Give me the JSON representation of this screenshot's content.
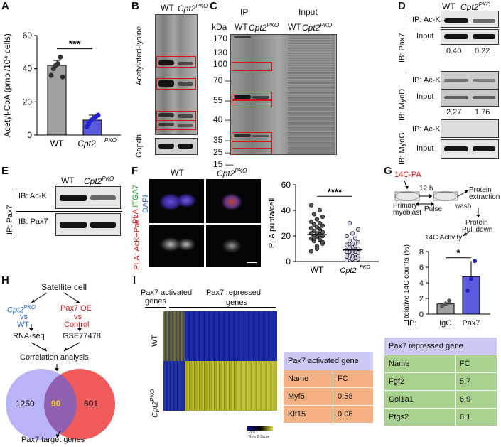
{
  "panels": {
    "A": "A",
    "B": "B",
    "C": "C",
    "D": "D",
    "E": "E",
    "F": "F",
    "G": "G",
    "H": "H",
    "I": "I"
  },
  "panelA": {
    "ylabel": "Acetyl-CoA (pmol/10⁴ cells)",
    "ticks": [
      "0",
      "20",
      "40",
      "60"
    ],
    "categories": [
      "WT",
      "Cpt2PKO"
    ],
    "significance": "***"
  },
  "panelB": {
    "wt": "WT",
    "ko": "Cpt2PKO",
    "acetyl": "Acetylated-lysine",
    "gapdh": "Gapdh"
  },
  "panelC": {
    "kda": "kDa",
    "ip": "IP",
    "input": "Input",
    "wt": "WT",
    "ko": "Cpt2PKO",
    "markers": [
      "170",
      "130",
      "100",
      "70",
      "55",
      "40",
      "35",
      "25",
      "15"
    ]
  },
  "panelD": {
    "wt": "WT",
    "ko": "Cpt2PKO",
    "ipack": "IP: Ac-K",
    "input": "Input",
    "ib1": "IB: Pax7",
    "ib2": "IB: MyoD",
    "ib3": "IB: MyoG",
    "q1a": "0.40",
    "q1b": "0.22",
    "q2a": "2.27",
    "q2b": "1.76"
  },
  "panelE": {
    "wt": "WT",
    "ko": "Cpt2PKO",
    "ip": "IP: Pax7",
    "ib1": "IB: Ac-K",
    "ib2": "IB: Pax7"
  },
  "panelF": {
    "wt": "WT",
    "ko": "Cpt2PKO",
    "pla": "PLA",
    "itga7": "ITGA7",
    "dapi": "DAPI",
    "pla2": "PLA: AcK+Pax7",
    "ylabel": "PLA punta/cell",
    "ticks": [
      "0",
      "20",
      "40",
      "60"
    ],
    "significance": "****"
  },
  "panelG": {
    "c14": "14C-PA",
    "h12": "12 h",
    "primary": "Primary",
    "myoblast": "myoblast",
    "pulse": "Pulse",
    "wash": "wash",
    "protein": "Protein",
    "extraction": "extraction",
    "protein2": "Protein",
    "pulldown": "Pull down",
    "activity": "14C Activity",
    "ylabel": "Relative 14C counts (%)",
    "ticks": [
      "0",
      "2",
      "4",
      "6",
      "8"
    ],
    "ip": "IP:",
    "igg": "IgG",
    "pax7": "Pax7",
    "significance": "*"
  },
  "panelH": {
    "satellite": "Satellite cell",
    "cpt2": "Cpt2PKO",
    "vs": "vs",
    "wt": "WT",
    "pax7oe": "Pax7 OE",
    "control": "Control",
    "rnaseq": "RNA-seq",
    "gse": "GSE77478",
    "corr": "Correlation analysis",
    "left": "1250",
    "overlap": "90",
    "right": "601",
    "target": "Pax7 target genes"
  },
  "panelI": {
    "activated": "Pax7 activated",
    "genes1": "genes",
    "repressed": "Pax7 repressed",
    "genes2": "genes",
    "wt": "WT",
    "ko": "Cpt2PKO",
    "scale": "-1  0  1",
    "zscore": "Row Z-Score",
    "act_title": "Pax7 activated gene",
    "rep_title": "Pax7 repressed gene",
    "name": "Name",
    "fc": "FC",
    "act_rows": [
      [
        "Myf5",
        "0.58"
      ],
      [
        "Klf15",
        "0.06"
      ]
    ],
    "rep_rows": [
      [
        "Fgf2",
        "5.7"
      ],
      [
        "Col1a1",
        "6.9"
      ],
      [
        "Ptgs2",
        "6.1"
      ]
    ]
  },
  "colors": {
    "red": "#d01818",
    "blue": "#2a64c8",
    "purple": "#5b5be0",
    "venn_left": "#b9b4f7",
    "venn_right": "#f05a5a",
    "table_act_head": "#c9c9f2",
    "table_act": "#f4b183",
    "table_rep": "#a9d18e"
  },
  "chart_data": [
    {
      "type": "bar",
      "panel": "A",
      "categories": [
        "WT",
        "Cpt2PKO"
      ],
      "values": [
        42,
        9
      ],
      "points": [
        [
          36,
          40,
          42,
          43,
          47,
          35
        ],
        [
          5,
          7,
          9,
          10,
          11,
          12
        ]
      ],
      "ylabel": "Acetyl-CoA (pmol/10⁴ cells)",
      "ylim": [
        0,
        60
      ]
    },
    {
      "type": "scatter",
      "panel": "F",
      "categories": [
        "WT",
        "Cpt2PKO"
      ],
      "means": [
        21,
        9
      ],
      "ylabel": "PLA punta/cell",
      "ylim": [
        0,
        60
      ]
    },
    {
      "type": "bar",
      "panel": "G",
      "categories": [
        "IgG",
        "Pax7"
      ],
      "values": [
        1.3,
        4.8
      ],
      "points": [
        [
          1,
          1.3,
          1.7
        ],
        [
          3,
          4.5,
          6.8
        ]
      ],
      "ylabel": "Relative 14C counts (%)",
      "ylim": [
        0,
        8
      ]
    }
  ]
}
